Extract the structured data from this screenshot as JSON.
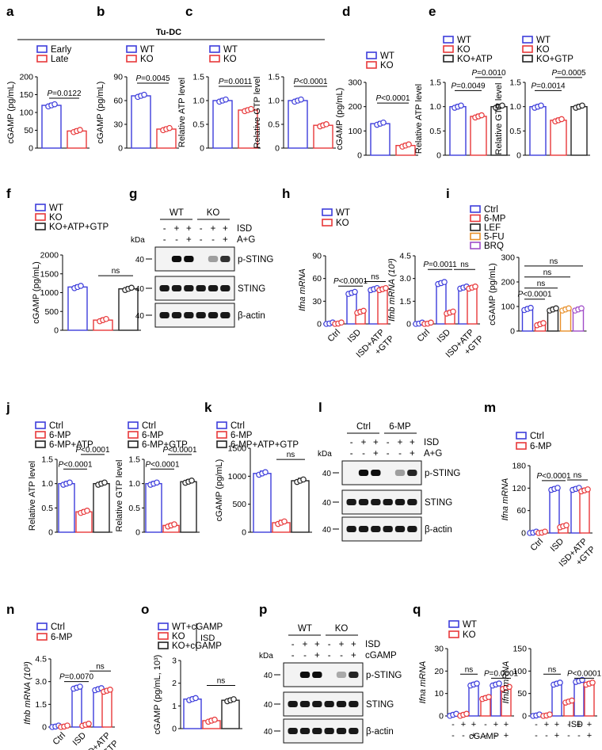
{
  "header": {
    "group_title": "Tu-DC"
  },
  "panel_letters": [
    "a",
    "b",
    "c",
    "d",
    "e",
    "f",
    "g",
    "h",
    "i",
    "j",
    "k",
    "l",
    "m",
    "n",
    "o",
    "p",
    "q"
  ],
  "legends": {
    "early_late": [
      "Early",
      "Late"
    ],
    "wt_ko": [
      "WT",
      "KO"
    ],
    "e_atp": [
      "WT",
      "KO",
      "KO+ATP"
    ],
    "e_gtp": [
      "WT",
      "KO",
      "KO+GTP"
    ],
    "f": [
      "WT",
      "KO",
      "KO+ATP+GTP"
    ],
    "i": [
      "Ctrl",
      "6-MP",
      "LEF",
      "5-FU",
      "BRQ"
    ],
    "j_atp": [
      "Ctrl",
      "6-MP",
      "6-MP+ATP"
    ],
    "j_gtp": [
      "Ctrl",
      "6-MP",
      "6-MP+GTP"
    ],
    "k": [
      "Ctrl",
      "6-MP",
      "6-MP+ATP+GTP"
    ],
    "ctrl_6mp": [
      "Ctrl",
      "6-MP"
    ],
    "o": [
      "WT+cGAMP",
      "KO",
      "KO+cGAMP"
    ],
    "o_side": "ISD"
  },
  "colors": {
    "blue": "#3d3ddb",
    "red": "#e8383a",
    "black": "#222222",
    "orange": "#e8902a",
    "purple": "#a04cc8",
    "bar_fill": "#ffffff"
  },
  "blots": {
    "g": {
      "groups": [
        "WT",
        "KO"
      ],
      "row1_label": "ISD",
      "row1_signs": [
        "-",
        "+",
        "+",
        "-",
        "+",
        "+"
      ],
      "row2_label": "A+G",
      "row2_signs": [
        "-",
        "-",
        "+",
        "-",
        "-",
        "+"
      ],
      "kda": "kDa",
      "bands": [
        "p-STING",
        "STING",
        "β-actin"
      ],
      "markers": [
        "40",
        "40",
        "40"
      ]
    },
    "l": {
      "groups": [
        "Ctrl",
        "6-MP"
      ],
      "row1_label": "ISD",
      "row1_signs": [
        "-",
        "+",
        "+",
        "-",
        "+",
        "+"
      ],
      "row2_label": "A+G",
      "row2_signs": [
        "-",
        "-",
        "+",
        "-",
        "-",
        "+"
      ],
      "kda": "kDa",
      "bands": [
        "p-STING",
        "STING",
        "β-actin"
      ],
      "markers": [
        "40",
        "40",
        "40"
      ]
    },
    "p": {
      "groups": [
        "WT",
        "KO"
      ],
      "row1_label": "ISD",
      "row1_signs": [
        "-",
        "+",
        "+",
        "-",
        "+",
        "+"
      ],
      "row2_label": "cGAMP",
      "row2_signs": [
        "-",
        "-",
        "+",
        "-",
        "-",
        "+"
      ],
      "kda": "kDa",
      "bands": [
        "p-STING",
        "STING",
        "β-actin"
      ],
      "markers": [
        "40",
        "40",
        "40"
      ]
    }
  },
  "chart_data": [
    {
      "id": "a",
      "type": "bar",
      "ylabel": "cGAMP (pg/mL)",
      "ylim": [
        0,
        200
      ],
      "yticks": [
        "0",
        "50",
        "100",
        "150",
        "200"
      ],
      "categories": [
        "Early",
        "Late"
      ],
      "values": [
        120,
        48
      ],
      "colors": [
        "blue",
        "red"
      ],
      "pvalues": [
        {
          "text": "P=0.0122"
        }
      ]
    },
    {
      "id": "b",
      "type": "bar",
      "ylabel": "cGAMP (pg/mL)",
      "ylim": [
        0,
        90
      ],
      "yticks": [
        "0",
        "30",
        "60",
        "90"
      ],
      "categories": [
        "WT",
        "KO"
      ],
      "values": [
        66,
        24
      ],
      "colors": [
        "blue",
        "red"
      ],
      "pvalues": [
        {
          "text": "P=0.0045"
        }
      ]
    },
    {
      "id": "c1",
      "type": "bar",
      "ylabel": "Relative ATP level",
      "ylim": [
        0,
        1.5
      ],
      "yticks": [
        "0",
        "0.5",
        "1.0",
        "1.5"
      ],
      "categories": [
        "WT",
        "KO"
      ],
      "values": [
        1.0,
        0.8
      ],
      "colors": [
        "blue",
        "red"
      ],
      "pvalues": [
        {
          "text": "P=0.0011"
        }
      ]
    },
    {
      "id": "c2",
      "type": "bar",
      "ylabel": "Relative GTP level",
      "ylim": [
        0,
        1.5
      ],
      "yticks": [
        "0",
        "0.5",
        "1.0",
        "1.5"
      ],
      "categories": [
        "WT",
        "KO"
      ],
      "values": [
        1.0,
        0.48
      ],
      "colors": [
        "blue",
        "red"
      ],
      "pvalues": [
        {
          "text": "P<0.0001"
        }
      ]
    },
    {
      "id": "d",
      "type": "bar",
      "ylabel": "cGAMP (pg/mL)",
      "ylim": [
        0,
        300
      ],
      "yticks": [
        "0",
        "100",
        "200",
        "300"
      ],
      "categories": [
        "WT",
        "KO"
      ],
      "values": [
        130,
        40
      ],
      "colors": [
        "blue",
        "red"
      ],
      "pvalues": [
        {
          "text": "P<0.0001"
        }
      ]
    },
    {
      "id": "e1",
      "type": "bar",
      "ylabel": "Relative ATP level",
      "ylim": [
        0,
        1.5
      ],
      "yticks": [
        "0",
        "0.5",
        "1.0",
        "1.5"
      ],
      "categories": [
        "WT",
        "KO",
        "KO+ATP"
      ],
      "values": [
        1.0,
        0.8,
        1.0
      ],
      "colors": [
        "blue",
        "red",
        "black"
      ],
      "pvalues": [
        {
          "text": "P=0.0049"
        },
        {
          "text": "P=0.0010"
        }
      ]
    },
    {
      "id": "e2",
      "type": "bar",
      "ylabel": "Relative GTP level",
      "ylim": [
        0,
        1.5
      ],
      "yticks": [
        "0",
        "0.5",
        "1.0",
        "1.5"
      ],
      "categories": [
        "WT",
        "KO",
        "KO+GTP"
      ],
      "values": [
        1.0,
        0.72,
        1.0
      ],
      "colors": [
        "blue",
        "red",
        "black"
      ],
      "pvalues": [
        {
          "text": "P=0.0014"
        },
        {
          "text": "P=0.0005"
        }
      ]
    },
    {
      "id": "f",
      "type": "bar",
      "ylabel": "cGAMP (pg/mL)",
      "ylim": [
        0,
        2000
      ],
      "yticks": [
        "0",
        "500",
        "1000",
        "1500",
        "2000"
      ],
      "categories": [
        "WT",
        "KO",
        "KO+ATP+GTP"
      ],
      "values": [
        1150,
        270,
        1100
      ],
      "colors": [
        "blue",
        "red",
        "black"
      ],
      "pvalues": [
        {
          "text": "ns"
        }
      ]
    },
    {
      "id": "h1",
      "type": "bar",
      "ylabel": "Ifna mRNA",
      "ylim": [
        0,
        90
      ],
      "yticks": [
        "0",
        "30",
        "60",
        "90"
      ],
      "categories": [
        "Ctrl",
        "ISD",
        "ISD+ATP +GTP"
      ],
      "series": [
        {
          "name": "WT",
          "values": [
            0.5,
            41,
            46
          ]
        },
        {
          "name": "KO",
          "values": [
            0.5,
            16,
            46
          ]
        }
      ],
      "pvalues": [
        {
          "text": "P<0.0001"
        },
        {
          "text": "ns"
        }
      ]
    },
    {
      "id": "h2",
      "type": "bar",
      "ylabel": "Ifnb mRNA (10³)",
      "ylim": [
        0,
        4.5
      ],
      "yticks": [
        "0",
        "1.5",
        "3.0",
        "4.5"
      ],
      "categories": [
        "Ctrl",
        "ISD",
        "ISD+ATP +GTP"
      ],
      "series": [
        {
          "name": "WT",
          "values": [
            0.02,
            2.7,
            2.4
          ]
        },
        {
          "name": "KO",
          "values": [
            0.02,
            0.75,
            2.4
          ]
        }
      ],
      "pvalues": [
        {
          "text": "P=0.0011"
        },
        {
          "text": "ns"
        }
      ]
    },
    {
      "id": "i",
      "type": "bar",
      "ylabel": "cGAMP (pg/mL)",
      "ylim": [
        0,
        300
      ],
      "yticks": [
        "0",
        "100",
        "200",
        "300"
      ],
      "categories": [
        "Ctrl",
        "6-MP",
        "LEF",
        "5-FU",
        "BRQ"
      ],
      "values": [
        90,
        28,
        88,
        88,
        88
      ],
      "colors": [
        "blue",
        "red",
        "black",
        "orange",
        "purple"
      ],
      "pvalues": [
        {
          "text": "P<0.0001"
        },
        {
          "text": "ns"
        },
        {
          "text": "ns"
        },
        {
          "text": "ns"
        }
      ]
    },
    {
      "id": "j1",
      "type": "bar",
      "ylabel": "Relative ATP level",
      "ylim": [
        0,
        1.5
      ],
      "yticks": [
        "0",
        "0.5",
        "1.0",
        "1.5"
      ],
      "categories": [
        "Ctrl",
        "6-MP",
        "6-MP+ATP"
      ],
      "values": [
        1.0,
        0.42,
        1.0
      ],
      "colors": [
        "blue",
        "red",
        "black"
      ],
      "pvalues": [
        {
          "text": "P<0.0001"
        },
        {
          "text": "P<0.0001"
        }
      ]
    },
    {
      "id": "j2",
      "type": "bar",
      "ylabel": "Relative GTP level",
      "ylim": [
        0,
        1.5
      ],
      "yticks": [
        "0",
        "0.5",
        "1.0",
        "1.5"
      ],
      "categories": [
        "Ctrl",
        "6-MP",
        "6-MP+GTP"
      ],
      "values": [
        1.0,
        0.14,
        1.04
      ],
      "colors": [
        "blue",
        "red",
        "black"
      ],
      "pvalues": [
        {
          "text": "P<0.0001"
        },
        {
          "text": "P<0.0001"
        }
      ]
    },
    {
      "id": "k",
      "type": "bar",
      "ylabel": "cGAMP (pg/mL)",
      "ylim": [
        0,
        1500
      ],
      "yticks": [
        "0",
        "500",
        "1000",
        "1500"
      ],
      "categories": [
        "Ctrl",
        "6-MP",
        "6-MP+ATP+GTP"
      ],
      "values": [
        1050,
        170,
        920
      ],
      "colors": [
        "blue",
        "red",
        "black"
      ],
      "pvalues": [
        {
          "text": "ns"
        }
      ]
    },
    {
      "id": "m",
      "type": "bar",
      "ylabel": "Ifna mRNA",
      "ylim": [
        0,
        180
      ],
      "yticks": [
        "0",
        "60",
        "120",
        "180"
      ],
      "categories": [
        "Ctrl",
        "ISD",
        "ISD+ATP +GTP"
      ],
      "series": [
        {
          "name": "Ctrl",
          "values": [
            1,
            118,
            118
          ]
        },
        {
          "name": "6-MP",
          "values": [
            1,
            18,
            114
          ]
        }
      ],
      "pvalues": [
        {
          "text": "P<0.0001"
        },
        {
          "text": "ns"
        }
      ]
    },
    {
      "id": "n",
      "type": "bar",
      "ylabel": "Ifnb mRNA (10³)",
      "ylim": [
        0,
        4.5
      ],
      "yticks": [
        "0",
        "1.5",
        "3.0",
        "4.5"
      ],
      "categories": [
        "Ctrl",
        "ISD",
        "ISD+ATP +GTP"
      ],
      "series": [
        {
          "name": "Ctrl",
          "values": [
            0.03,
            2.6,
            2.5
          ]
        },
        {
          "name": "6-MP",
          "values": [
            0.03,
            0.15,
            2.4
          ]
        }
      ],
      "pvalues": [
        {
          "text": "P=0.0070"
        },
        {
          "text": "ns"
        }
      ]
    },
    {
      "id": "o",
      "type": "bar",
      "ylabel": "cGAMP (pg/mL, 10³)",
      "ylim": [
        0,
        3
      ],
      "yticks": [
        "0",
        "1",
        "2",
        "3"
      ],
      "categories": [
        "WT+cGAMP",
        "KO",
        "KO+cGAMP"
      ],
      "values": [
        1.3,
        0.35,
        1.25
      ],
      "colors": [
        "blue",
        "red",
        "black"
      ],
      "pvalues": [
        {
          "text": "ns"
        }
      ]
    },
    {
      "id": "q1",
      "type": "bar",
      "ylabel": "Ifna mRNA",
      "ylim": [
        0,
        30
      ],
      "yticks": [
        "0",
        "10",
        "20",
        "30"
      ],
      "row1_label": "ISD",
      "row2_label": "cGAMP",
      "row1_signs": [
        "-",
        "+",
        "+",
        "-",
        "+",
        "+"
      ],
      "row2_signs": [
        "-",
        "-",
        "+",
        "-",
        "-",
        "+"
      ],
      "series": [
        {
          "name": "WT",
          "values": [
            0.5,
            14,
            14
          ]
        },
        {
          "name": "KO",
          "values": [
            0.5,
            8,
            12.5
          ]
        }
      ],
      "pvalues": [
        {
          "text": "ns"
        },
        {
          "text": "P=0.0001"
        }
      ]
    },
    {
      "id": "q2",
      "type": "bar",
      "ylabel": "Ifnb mRNA",
      "ylim": [
        0,
        150
      ],
      "yticks": [
        "0",
        "50",
        "100",
        "150"
      ],
      "row1_label": "ISD",
      "row2_label": "cGAMP",
      "row1_signs": [
        "-",
        "+",
        "+",
        "-",
        "+",
        "+"
      ],
      "row2_signs": [
        "-",
        "-",
        "+",
        "-",
        "-",
        "+"
      ],
      "series": [
        {
          "name": "WT",
          "values": [
            1,
            72,
            78
          ]
        },
        {
          "name": "KO",
          "values": [
            1,
            32,
            72
          ]
        }
      ],
      "pvalues": [
        {
          "text": "ns"
        },
        {
          "text": "P<0.0001"
        }
      ]
    }
  ]
}
